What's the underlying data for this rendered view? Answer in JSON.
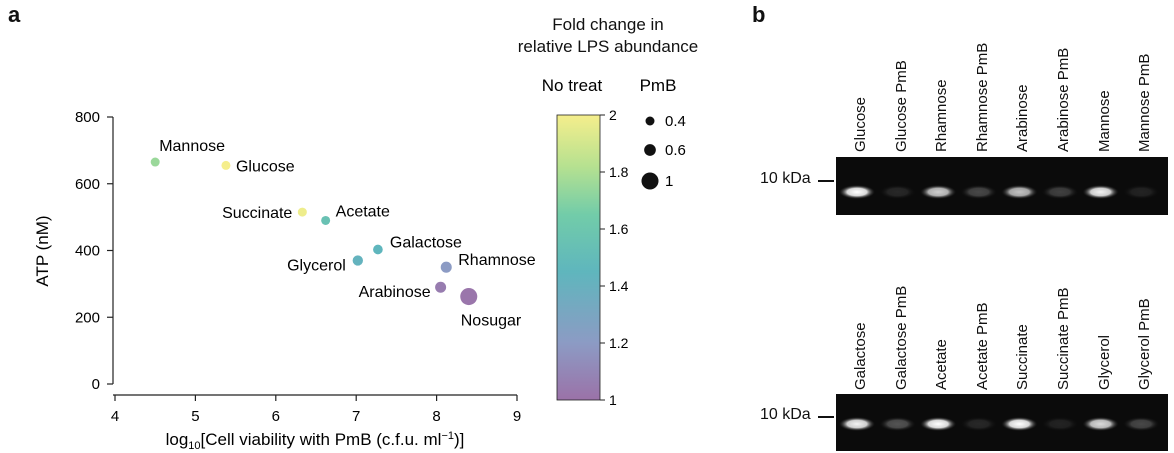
{
  "panel_a": {
    "letter": "a",
    "legend": {
      "title_line1": "Fold change in",
      "title_line2": "relative LPS abundance",
      "colorbar_label": "No treat",
      "colorbar_ticks": [
        "2",
        "1.8",
        "1.6",
        "1.4",
        "1.2",
        "1"
      ],
      "colorbar_min": 1,
      "colorbar_max": 2,
      "size_label": "PmB",
      "size_items": [
        "0.4",
        "0.6",
        "1"
      ]
    }
  },
  "chart_data": {
    "type": "scatter",
    "title": "",
    "xlabel_main": "log",
    "xlabel_sub": "10",
    "xlabel_rest": "[Cell viability with PmB (c.f.u. ml",
    "xlabel_sup": "−1",
    "xlabel_end": ")]",
    "ylabel": "ATP (nM)",
    "xlim": [
      4,
      9
    ],
    "ylim": [
      0,
      800
    ],
    "xticks": [
      "4",
      "5",
      "6",
      "7",
      "8",
      "9"
    ],
    "yticks": [
      "0",
      "200",
      "400",
      "600",
      "800"
    ],
    "grid": false,
    "points": [
      {
        "label": "Mannose",
        "x": 4.5,
        "y": 665,
        "fold_change": 1.75,
        "pmb": 0.4
      },
      {
        "label": "Glucose",
        "x": 5.38,
        "y": 655,
        "fold_change": 2.0,
        "pmb": 0.4
      },
      {
        "label": "Succinate",
        "x": 6.33,
        "y": 515,
        "fold_change": 1.98,
        "pmb": 0.4
      },
      {
        "label": "Acetate",
        "x": 6.62,
        "y": 490,
        "fold_change": 1.55,
        "pmb": 0.4
      },
      {
        "label": "Galactose",
        "x": 7.27,
        "y": 403,
        "fold_change": 1.45,
        "pmb": 0.45
      },
      {
        "label": "Glycerol",
        "x": 7.02,
        "y": 370,
        "fold_change": 1.42,
        "pmb": 0.5
      },
      {
        "label": "Rhamnose",
        "x": 8.12,
        "y": 350,
        "fold_change": 1.2,
        "pmb": 0.55
      },
      {
        "label": "Arabinose",
        "x": 8.05,
        "y": 290,
        "fold_change": 1.05,
        "pmb": 0.55
      },
      {
        "label": "Nosugar",
        "x": 8.4,
        "y": 262,
        "fold_change": 1.02,
        "pmb": 1.0
      }
    ]
  },
  "panel_b": {
    "letter": "b",
    "marker_label": "10 kDa",
    "top_lanes": [
      "Glucose",
      "Glucose PmB",
      "Rhamnose",
      "Rhamnose PmB",
      "Arabinose",
      "Arabinose PmB",
      "Mannose",
      "Mannose PmB"
    ],
    "top_band_intensity": [
      1.0,
      0.12,
      0.8,
      0.25,
      0.75,
      0.22,
      0.95,
      0.1
    ],
    "bottom_lanes": [
      "Galactose",
      "Galactose PmB",
      "Acetate",
      "Acetate PmB",
      "Succinate",
      "Succinate PmB",
      "Glycerol",
      "Glycerol PmB"
    ],
    "bottom_band_intensity": [
      0.95,
      0.3,
      1.0,
      0.12,
      1.0,
      0.1,
      0.85,
      0.25
    ]
  }
}
